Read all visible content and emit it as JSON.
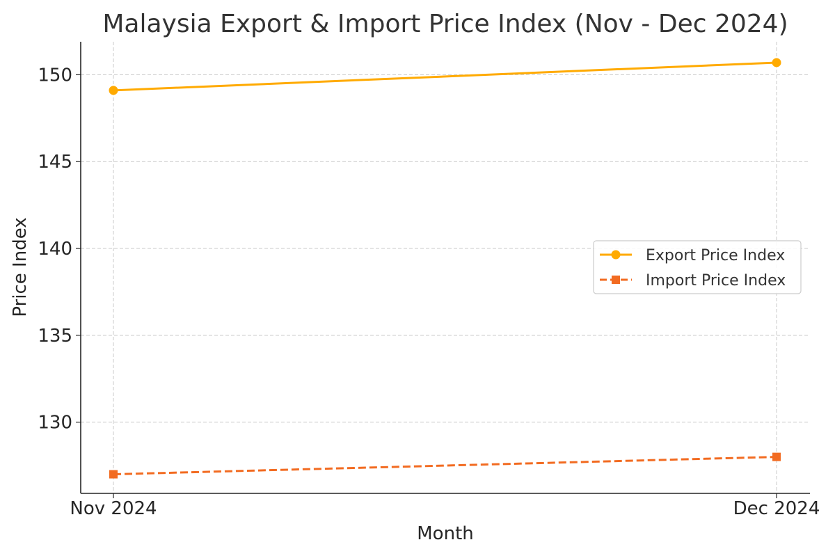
{
  "chart_data": {
    "type": "line",
    "title": "Malaysia Export & Import Price Index (Nov - Dec 2024)",
    "xlabel": "Month",
    "ylabel": "Price Index",
    "categories": [
      "Nov 2024",
      "Dec 2024"
    ],
    "ylim": [
      125.9,
      151.9
    ],
    "yticks": [
      130,
      135,
      140,
      145,
      150
    ],
    "grid": true,
    "legend_position": "center-right",
    "series": [
      {
        "name": "Export Price Index",
        "values": [
          149.1,
          150.7
        ],
        "color": "#FFAA00",
        "line_style": "solid",
        "marker": "circle"
      },
      {
        "name": "Import Price Index",
        "values": [
          127.0,
          128.0
        ],
        "color": "#F26B21",
        "line_style": "dashed",
        "marker": "square"
      }
    ]
  }
}
